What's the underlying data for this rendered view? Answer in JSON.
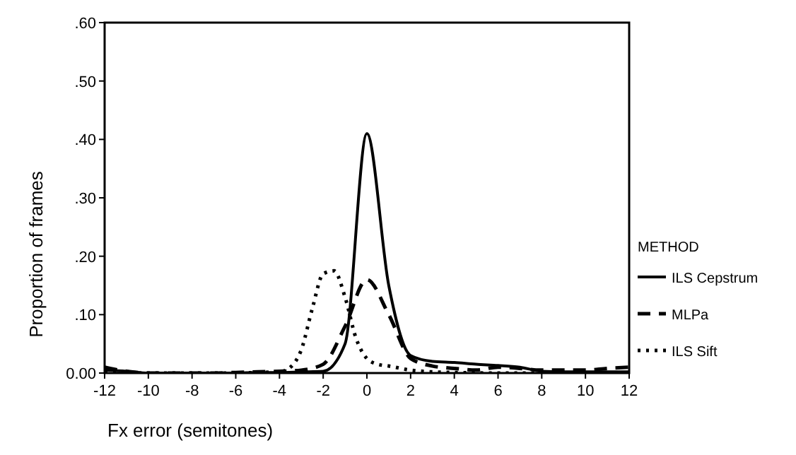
{
  "chart_data": {
    "type": "line",
    "xlabel": "Fx error (semitones)",
    "ylabel": "Proportion of frames",
    "legend_title": "METHOD",
    "legend": "right",
    "grid": false,
    "marker": "none",
    "xlim": [
      -12,
      12
    ],
    "xticks": [
      -12,
      -10,
      -8,
      -6,
      -4,
      -2,
      0,
      2,
      4,
      6,
      8,
      10,
      12
    ],
    "ylim": [
      0,
      0.6
    ],
    "yticks": [
      {
        "value": 0,
        "label": "0.00"
      },
      {
        "value": 0.1,
        "label": ".10"
      },
      {
        "value": 0.2,
        "label": ".20"
      },
      {
        "value": 0.3,
        "label": ".30"
      },
      {
        "value": 0.4,
        "label": ".40"
      },
      {
        "value": 0.5,
        "label": ".50"
      },
      {
        "value": 0.6,
        "label": ".60"
      }
    ],
    "series": [
      {
        "name": "ILS Cepstrum",
        "color": "#000000",
        "line_style": "solid",
        "x": [
          -12,
          -11,
          -10,
          -9,
          -8,
          -7,
          -6,
          -5,
          -4,
          -3,
          -2,
          -1,
          0,
          1,
          2,
          3,
          4,
          5,
          6,
          7,
          8,
          9,
          10,
          11,
          12
        ],
        "values": [
          0.005,
          0.003,
          0,
          0,
          0,
          0,
          0,
          0.001,
          0.001,
          0.002,
          0.003,
          0.05,
          0.41,
          0.15,
          0.03,
          0.02,
          0.018,
          0.015,
          0.013,
          0.01,
          0.003,
          0.002,
          0.002,
          0.002,
          0.002
        ]
      },
      {
        "name": "MLPa",
        "color": "#000000",
        "line_style": "dashed",
        "x": [
          -12,
          -11,
          -10,
          -9,
          -8,
          -7,
          -6,
          -5,
          -4,
          -3,
          -2,
          -1,
          0,
          1,
          2,
          3,
          4,
          5,
          6,
          7,
          8,
          9,
          10,
          11,
          12
        ],
        "values": [
          0.01,
          0.003,
          0,
          0,
          0,
          0,
          0.001,
          0.002,
          0.003,
          0.005,
          0.015,
          0.08,
          0.16,
          0.1,
          0.025,
          0.012,
          0.008,
          0.005,
          0.01,
          0.008,
          0.005,
          0.005,
          0.005,
          0.008,
          0.01
        ]
      },
      {
        "name": "ILS Sift",
        "color": "#000000",
        "line_style": "dotted",
        "x": [
          -12,
          -10,
          -8,
          -6,
          -5,
          -4,
          -3.5,
          -3,
          -2.5,
          -2,
          -1.5,
          -1,
          -0.5,
          0,
          0.5,
          1,
          2,
          3,
          4,
          6,
          8,
          10,
          12
        ],
        "values": [
          0.002,
          0,
          0,
          0,
          0.001,
          0.002,
          0.01,
          0.04,
          0.11,
          0.17,
          0.175,
          0.13,
          0.06,
          0.025,
          0.015,
          0.012,
          0.005,
          0.002,
          0.001,
          0,
          0,
          0,
          0
        ]
      }
    ]
  }
}
